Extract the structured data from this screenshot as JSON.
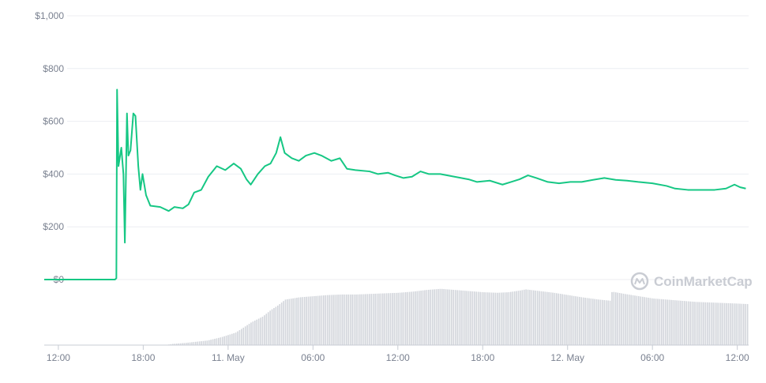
{
  "chart_data": {
    "type": "line",
    "y_unit": "USD",
    "y_ticks": [
      "$1,000",
      "$800",
      "$600",
      "$400",
      "$200",
      "$0"
    ],
    "y_tick_values": [
      1000,
      800,
      600,
      400,
      200,
      0
    ],
    "ylim": [
      0,
      1000
    ],
    "x_ticks": [
      "12:00",
      "18:00",
      "11. May",
      "06:00",
      "12:00",
      "18:00",
      "12. May",
      "06:00",
      "12:00"
    ],
    "x_tick_hours": [
      0,
      6,
      12,
      18,
      24,
      30,
      36,
      42,
      48
    ],
    "x_range_hours": [
      -1,
      48.8
    ],
    "x_start": "10 May 12:00",
    "grid": true,
    "series": [
      {
        "kind": "price",
        "color": "#16c784",
        "points": [
          [
            -1.0,
            0
          ],
          [
            4.0,
            0
          ],
          [
            4.1,
            5
          ],
          [
            4.15,
            720
          ],
          [
            4.25,
            430
          ],
          [
            4.45,
            500
          ],
          [
            4.6,
            400
          ],
          [
            4.7,
            140
          ],
          [
            4.85,
            630
          ],
          [
            4.95,
            470
          ],
          [
            5.1,
            490
          ],
          [
            5.3,
            630
          ],
          [
            5.45,
            620
          ],
          [
            5.65,
            430
          ],
          [
            5.8,
            340
          ],
          [
            5.95,
            400
          ],
          [
            6.2,
            320
          ],
          [
            6.5,
            280
          ],
          [
            7.2,
            275
          ],
          [
            7.8,
            260
          ],
          [
            8.2,
            275
          ],
          [
            8.8,
            270
          ],
          [
            9.2,
            285
          ],
          [
            9.6,
            330
          ],
          [
            10.1,
            340
          ],
          [
            10.6,
            390
          ],
          [
            11.2,
            430
          ],
          [
            11.8,
            415
          ],
          [
            12.4,
            440
          ],
          [
            12.9,
            420
          ],
          [
            13.3,
            380
          ],
          [
            13.6,
            360
          ],
          [
            14.1,
            400
          ],
          [
            14.6,
            430
          ],
          [
            15.0,
            440
          ],
          [
            15.4,
            480
          ],
          [
            15.7,
            540
          ],
          [
            16.0,
            480
          ],
          [
            16.5,
            460
          ],
          [
            17.0,
            450
          ],
          [
            17.5,
            470
          ],
          [
            18.1,
            480
          ],
          [
            18.6,
            470
          ],
          [
            19.3,
            450
          ],
          [
            19.9,
            460
          ],
          [
            20.4,
            420
          ],
          [
            21.0,
            415
          ],
          [
            22.0,
            410
          ],
          [
            22.6,
            400
          ],
          [
            23.3,
            405
          ],
          [
            23.8,
            395
          ],
          [
            24.4,
            385
          ],
          [
            25.0,
            390
          ],
          [
            25.6,
            410
          ],
          [
            26.2,
            400
          ],
          [
            27.0,
            400
          ],
          [
            28.0,
            390
          ],
          [
            29.0,
            380
          ],
          [
            29.6,
            370
          ],
          [
            30.5,
            375
          ],
          [
            31.4,
            360
          ],
          [
            32.0,
            370
          ],
          [
            32.6,
            380
          ],
          [
            33.2,
            395
          ],
          [
            33.8,
            385
          ],
          [
            34.6,
            370
          ],
          [
            35.4,
            365
          ],
          [
            36.2,
            370
          ],
          [
            37.0,
            370
          ],
          [
            37.8,
            378
          ],
          [
            38.6,
            385
          ],
          [
            39.4,
            378
          ],
          [
            40.2,
            375
          ],
          [
            41.0,
            370
          ],
          [
            42.0,
            365
          ],
          [
            43.0,
            355
          ],
          [
            43.6,
            345
          ],
          [
            44.5,
            340
          ],
          [
            45.5,
            340
          ],
          [
            46.4,
            340
          ],
          [
            47.2,
            345
          ],
          [
            47.8,
            360
          ],
          [
            48.2,
            350
          ],
          [
            48.6,
            345
          ]
        ]
      },
      {
        "kind": "volume",
        "color": "#d2d5db",
        "relative_scale_max": 100,
        "points": [
          [
            -1.0,
            0
          ],
          [
            7.5,
            0
          ],
          [
            8.0,
            2
          ],
          [
            9.0,
            4
          ],
          [
            10.5,
            8
          ],
          [
            11.5,
            14
          ],
          [
            12.5,
            22
          ],
          [
            13.0,
            30
          ],
          [
            13.6,
            40
          ],
          [
            14.4,
            50
          ],
          [
            15.0,
            62
          ],
          [
            15.5,
            70
          ],
          [
            16.0,
            80
          ],
          [
            17.0,
            84
          ],
          [
            18.0,
            86
          ],
          [
            19.0,
            88
          ],
          [
            20.0,
            89
          ],
          [
            21.0,
            89
          ],
          [
            22.0,
            90
          ],
          [
            23.0,
            91
          ],
          [
            24.0,
            92
          ],
          [
            25.0,
            94
          ],
          [
            26.0,
            97
          ],
          [
            27.0,
            99
          ],
          [
            28.0,
            97
          ],
          [
            29.0,
            95
          ],
          [
            30.0,
            93
          ],
          [
            31.0,
            92
          ],
          [
            31.8,
            93
          ],
          [
            32.6,
            96
          ],
          [
            33.0,
            98
          ],
          [
            34.0,
            95
          ],
          [
            35.0,
            92
          ],
          [
            36.0,
            88
          ],
          [
            37.0,
            84
          ],
          [
            38.2,
            80
          ],
          [
            39.0,
            78
          ],
          [
            39.1,
            94
          ],
          [
            40.0,
            90
          ],
          [
            41.0,
            86
          ],
          [
            42.0,
            82
          ],
          [
            43.0,
            80
          ],
          [
            44.0,
            78
          ],
          [
            45.0,
            76
          ],
          [
            46.0,
            75
          ],
          [
            47.0,
            74
          ],
          [
            48.0,
            73
          ],
          [
            48.8,
            72
          ]
        ]
      }
    ]
  },
  "watermark": {
    "text": "CoinMarketCap",
    "icon": "coinmarketcap-logo-icon",
    "color": "#c9ccd3"
  }
}
